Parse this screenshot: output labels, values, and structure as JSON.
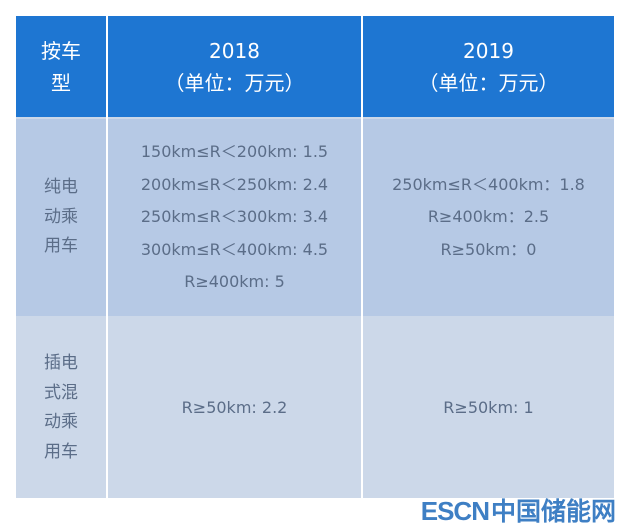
{
  "header": {
    "col1": "按车型",
    "col2_year": "2018",
    "col2_unit": "（单位：万元）",
    "col3_year": "2019",
    "col3_unit": "（单位：万元）"
  },
  "rows": [
    {
      "type": "纯电动乘用车",
      "y2018": [
        "150km≤R＜200km: 1.5",
        "200km≤R＜250km: 2.4",
        "250km≤R＜300km: 3.4",
        "300km≤R＜400km: 4.5",
        "R≥400km: 5"
      ],
      "y2019": [
        "250km≤R＜400km：1.8",
        "R≥400km：2.5",
        "R≥50km：0"
      ]
    },
    {
      "type": "插电式混动乘用车",
      "y2018": [
        "R≥50km: 2.2"
      ],
      "y2019": [
        "R≥50km: 1"
      ]
    }
  ],
  "watermark": {
    "latin": "ESCN",
    "cjk": "中国储能网"
  },
  "colors": {
    "header_bg": "#1e76d2",
    "row1_bg": "#b6c9e5",
    "row2_bg": "#ccd8e9",
    "body_text": "#5b6d88",
    "watermark": "#3e7fc4"
  }
}
